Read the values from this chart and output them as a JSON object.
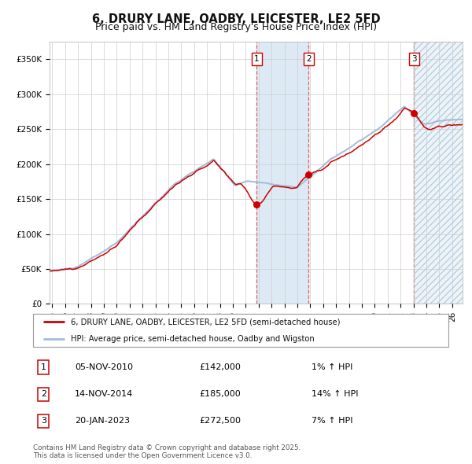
{
  "title": "6, DRURY LANE, OADBY, LEICESTER, LE2 5FD",
  "subtitle": "Price paid vs. HM Land Registry's House Price Index (HPI)",
  "legend_line1": "6, DRURY LANE, OADBY, LEICESTER, LE2 5FD (semi-detached house)",
  "legend_line2": "HPI: Average price, semi-detached house, Oadby and Wigston",
  "footer": "Contains HM Land Registry data © Crown copyright and database right 2025.\nThis data is licensed under the Open Government Licence v3.0.",
  "transactions": [
    {
      "num": 1,
      "date": "05-NOV-2010",
      "price": 142000,
      "hpi_pct": "1%",
      "direction": "↑"
    },
    {
      "num": 2,
      "date": "14-NOV-2014",
      "price": 185000,
      "hpi_pct": "14%",
      "direction": "↑"
    },
    {
      "num": 3,
      "date": "20-JAN-2023",
      "price": 272500,
      "hpi_pct": "7%",
      "direction": "↑"
    }
  ],
  "t1_date": 2010.86,
  "t2_date": 2014.87,
  "t3_date": 2023.05,
  "t1_price": 142000,
  "t2_price": 185000,
  "t3_price": 272500,
  "ylim": [
    0,
    375000
  ],
  "yticks": [
    0,
    50000,
    100000,
    150000,
    200000,
    250000,
    300000,
    350000
  ],
  "ytick_labels": [
    "£0",
    "£50K",
    "£100K",
    "£150K",
    "£200K",
    "£250K",
    "£300K",
    "£350K"
  ],
  "xlim_start": 1994.8,
  "xlim_end": 2026.8,
  "bg_color": "#ffffff",
  "grid_color": "#cccccc",
  "hpi_line_color": "#a0bcd8",
  "price_line_color": "#cc0000",
  "dot_color": "#cc0000",
  "vline_color": "#e06060",
  "shade_color": "#cce0f0",
  "hatch_color": "#b8cedd",
  "title_fontsize": 10.5,
  "subtitle_fontsize": 9,
  "tick_fontsize": 7.5,
  "label_fontsize": 8
}
